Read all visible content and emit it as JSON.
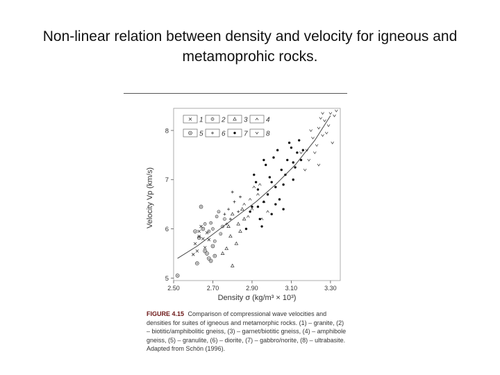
{
  "slide": {
    "title_line1": "Non-linear relation between density and velocity for igneous and",
    "title_line2": "metamoprohic rocks."
  },
  "figure": {
    "number": "FIGURE 4.15",
    "caption": "Comparison of compressional wave velocities and densities for suites of igneous and metamorphic rocks. (1) – granite, (2) – biotitic/amphibolitic gneiss, (3) – garnet/biotitic gneiss, (4) – amphibole gneiss, (5) – granulite, (6) – diorite, (7) – gabbro/norite, (8) – ultrabasite. Adapted from Schön (1996)."
  },
  "chart_data": {
    "type": "scatter",
    "xlabel": "Density σ (kg/m³ × 10³)",
    "ylabel": "Velocity Vp (km/s)",
    "xlim": [
      2.5,
      3.35
    ],
    "ylim": [
      4.95,
      8.45
    ],
    "xticks": [
      "2.50",
      "2.70",
      "2.90",
      "3.10",
      "3.30"
    ],
    "yticks": [
      "5",
      "6",
      "7",
      "8"
    ],
    "legend_position": "top-left",
    "grid": false,
    "series": [
      {
        "name": "1",
        "marker": "x",
        "points": [
          [
            2.61,
            5.7
          ],
          [
            2.63,
            5.85
          ],
          [
            2.65,
            5.8
          ],
          [
            2.67,
            5.92
          ],
          [
            2.62,
            5.55
          ],
          [
            2.64,
            6.05
          ],
          [
            2.66,
            5.62
          ],
          [
            2.6,
            5.48
          ],
          [
            2.68,
            5.78
          ],
          [
            2.63,
            5.95
          ]
        ]
      },
      {
        "name": "2",
        "marker": "o-dot",
        "points": [
          [
            2.66,
            6.1
          ],
          [
            2.7,
            6.0
          ],
          [
            2.72,
            6.25
          ],
          [
            2.74,
            5.9
          ],
          [
            2.68,
            5.95
          ],
          [
            2.76,
            6.2
          ],
          [
            2.71,
            5.75
          ],
          [
            2.73,
            6.35
          ],
          [
            2.69,
            6.12
          ],
          [
            2.75,
            6.05
          ]
        ]
      },
      {
        "name": "3",
        "marker": "triangle",
        "points": [
          [
            2.78,
            6.05
          ],
          [
            2.8,
            6.3
          ],
          [
            2.83,
            6.1
          ],
          [
            2.85,
            6.4
          ],
          [
            2.79,
            5.85
          ],
          [
            2.82,
            5.7
          ],
          [
            2.86,
            6.2
          ],
          [
            2.77,
            5.6
          ],
          [
            2.84,
            5.95
          ],
          [
            2.75,
            5.5
          ],
          [
            2.8,
            5.25
          ]
        ]
      },
      {
        "name": "4",
        "marker": "caret",
        "points": [
          [
            2.86,
            6.5
          ],
          [
            2.9,
            6.4
          ],
          [
            2.93,
            6.7
          ],
          [
            2.96,
            6.55
          ],
          [
            2.88,
            6.25
          ],
          [
            2.94,
            6.9
          ],
          [
            2.98,
            6.35
          ],
          [
            2.91,
            6.85
          ],
          [
            2.89,
            6.6
          ],
          [
            2.95,
            6.2
          ]
        ]
      },
      {
        "name": "5",
        "marker": "o-dot-big",
        "points": [
          [
            2.64,
            6.45
          ],
          [
            2.62,
            5.3
          ],
          [
            2.66,
            5.55
          ],
          [
            2.68,
            5.4
          ],
          [
            2.7,
            5.65
          ],
          [
            2.63,
            5.82
          ],
          [
            2.65,
            6.0
          ],
          [
            2.67,
            5.5
          ],
          [
            2.71,
            5.45
          ],
          [
            2.61,
            5.95
          ],
          [
            2.69,
            5.35
          ],
          [
            2.52,
            5.05
          ]
        ]
      },
      {
        "name": "6",
        "marker": "plus",
        "points": [
          [
            2.78,
            6.4
          ],
          [
            2.81,
            6.55
          ],
          [
            2.76,
            6.3
          ],
          [
            2.84,
            6.65
          ],
          [
            2.79,
            6.2
          ],
          [
            2.83,
            6.35
          ],
          [
            2.8,
            6.75
          ],
          [
            2.77,
            6.1
          ]
        ]
      },
      {
        "name": "7",
        "marker": "dot",
        "points": [
          [
            2.9,
            6.45
          ],
          [
            2.93,
            6.8
          ],
          [
            2.96,
            6.55
          ],
          [
            2.99,
            7.05
          ],
          [
            3.02,
            6.85
          ],
          [
            3.05,
            7.2
          ],
          [
            3.08,
            7.4
          ],
          [
            3.11,
            7.0
          ],
          [
            3.13,
            7.55
          ],
          [
            3.0,
            6.3
          ],
          [
            2.94,
            6.2
          ],
          [
            2.97,
            7.3
          ],
          [
            3.03,
            7.6
          ],
          [
            3.06,
            6.9
          ],
          [
            2.91,
            7.1
          ],
          [
            2.95,
            6.05
          ],
          [
            3.09,
            7.75
          ],
          [
            3.12,
            7.25
          ],
          [
            2.98,
            6.7
          ],
          [
            3.04,
            6.6
          ],
          [
            2.92,
            6.95
          ],
          [
            3.01,
            7.45
          ],
          [
            3.07,
            7.1
          ],
          [
            3.14,
            7.8
          ],
          [
            3.1,
            7.65
          ],
          [
            2.89,
            6.35
          ],
          [
            3.15,
            7.4
          ],
          [
            3.0,
            6.95
          ],
          [
            2.96,
            7.4
          ],
          [
            3.02,
            6.5
          ],
          [
            2.87,
            6.0
          ],
          [
            3.06,
            6.4
          ],
          [
            2.93,
            6.45
          ],
          [
            3.11,
            7.35
          ],
          [
            3.16,
            7.6
          ]
        ]
      },
      {
        "name": "8",
        "marker": "v",
        "points": [
          [
            3.18,
            7.6
          ],
          [
            3.21,
            7.85
          ],
          [
            3.24,
            8.05
          ],
          [
            3.27,
            8.2
          ],
          [
            3.3,
            8.35
          ],
          [
            3.19,
            7.4
          ],
          [
            3.23,
            7.7
          ],
          [
            3.26,
            7.9
          ],
          [
            3.29,
            8.1
          ],
          [
            3.32,
            8.3
          ],
          [
            3.2,
            8.0
          ],
          [
            3.25,
            8.25
          ],
          [
            3.28,
            7.95
          ],
          [
            3.31,
            7.75
          ],
          [
            3.17,
            7.2
          ],
          [
            3.22,
            7.55
          ],
          [
            3.33,
            8.4
          ],
          [
            3.26,
            8.35
          ],
          [
            3.15,
            7.55
          ],
          [
            3.24,
            7.3
          ]
        ]
      }
    ],
    "trend_curve": [
      [
        2.52,
        5.4
      ],
      [
        2.62,
        5.65
      ],
      [
        2.72,
        5.95
      ],
      [
        2.82,
        6.25
      ],
      [
        2.92,
        6.55
      ],
      [
        3.02,
        6.9
      ],
      [
        3.12,
        7.3
      ],
      [
        3.22,
        7.8
      ],
      [
        3.3,
        8.3
      ]
    ]
  }
}
